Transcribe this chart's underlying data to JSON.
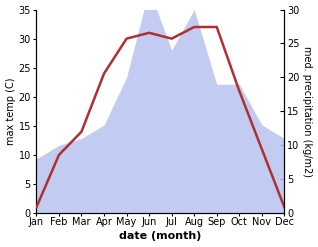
{
  "months": [
    1,
    2,
    3,
    4,
    5,
    6,
    7,
    8,
    9,
    10,
    11,
    12
  ],
  "month_labels": [
    "Jan",
    "Feb",
    "Mar",
    "Apr",
    "May",
    "Jun",
    "Jul",
    "Aug",
    "Sep",
    "Oct",
    "Nov",
    "Dec"
  ],
  "max_temp": [
    1,
    10,
    14,
    24,
    30,
    31,
    30,
    32,
    32,
    21,
    11,
    1
  ],
  "precipitation": [
    8,
    10,
    11,
    13,
    20,
    33,
    24,
    30,
    19,
    19,
    13,
    11
  ],
  "temp_color": "#b03030",
  "precip_fill_color": "#b8c4f0",
  "temp_ylim": [
    0,
    35
  ],
  "precip_ylim": [
    0,
    30
  ],
  "temp_yticks": [
    0,
    5,
    10,
    15,
    20,
    25,
    30,
    35
  ],
  "precip_yticks": [
    0,
    5,
    10,
    15,
    20,
    25,
    30
  ],
  "xlabel": "date (month)",
  "ylabel_left": "max temp (C)",
  "ylabel_right": "med. precipitation (kg/m2)",
  "bg_color": "#ffffff",
  "line_width": 1.8,
  "tick_fontsize": 7,
  "label_fontsize": 7,
  "xlabel_fontsize": 8
}
